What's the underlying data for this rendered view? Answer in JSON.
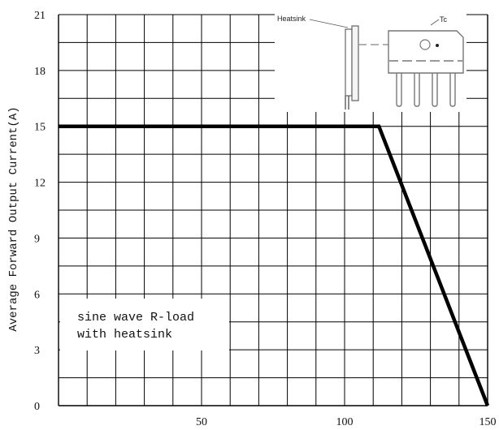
{
  "chart_data": {
    "type": "line",
    "xlabel": "",
    "ylabel": "Average Forward Output Current(A)",
    "xlim": [
      0,
      150
    ],
    "ylim": [
      0,
      21
    ],
    "x_ticks": [
      50,
      100,
      150
    ],
    "y_ticks": [
      0,
      3,
      6,
      9,
      12,
      15,
      18,
      21
    ],
    "grid": true,
    "series": [
      {
        "x": [
          0,
          112,
          150
        ],
        "y": [
          15,
          15,
          0
        ]
      }
    ],
    "annotations": [
      "sine wave R-load",
      "with heatsink"
    ],
    "inset": {
      "labels": [
        "Heatsink",
        "Tc"
      ]
    }
  },
  "colors": {
    "line": "#000000",
    "grid": "#000000",
    "inset_dash": "#999999"
  }
}
